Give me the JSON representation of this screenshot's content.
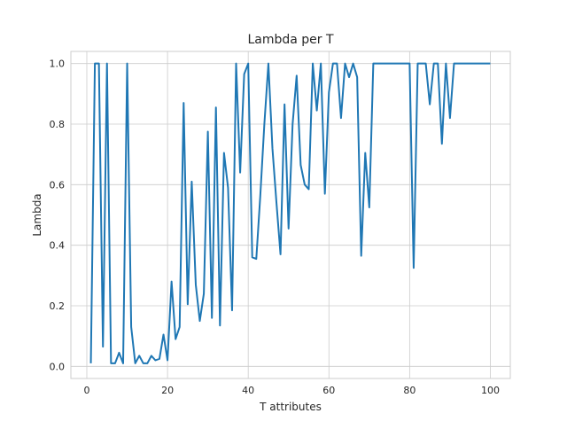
{
  "chart_data": {
    "type": "line",
    "title": "Lambda per T",
    "xlabel": "T attributes",
    "ylabel": "Lambda",
    "xlim": [
      -3.95,
      104.95
    ],
    "ylim": [
      -0.04,
      1.04
    ],
    "xticks": [
      0,
      20,
      40,
      60,
      80,
      100
    ],
    "yticks": [
      0.0,
      0.2,
      0.4,
      0.6,
      0.8,
      1.0
    ],
    "xtick_labels": [
      "0",
      "20",
      "40",
      "60",
      "80",
      "100"
    ],
    "ytick_labels": [
      "0.0",
      "0.2",
      "0.4",
      "0.6",
      "0.8",
      "1.0"
    ],
    "grid": true,
    "line_color": "#1f77b4",
    "series": [
      {
        "x": [
          1,
          2,
          3,
          4,
          5,
          6,
          7,
          8,
          9,
          10,
          11,
          12,
          13,
          14,
          15,
          16,
          17,
          18,
          19,
          20,
          21,
          22,
          23,
          24,
          25,
          26,
          27,
          28,
          29,
          30,
          31,
          32,
          33,
          34,
          35,
          36,
          37,
          38,
          39,
          40,
          41,
          42,
          43,
          44,
          45,
          46,
          47,
          48,
          49,
          50,
          51,
          52,
          53,
          54,
          55,
          56,
          57,
          58,
          59,
          60,
          61,
          62,
          63,
          64,
          65,
          66,
          67,
          68,
          69,
          70,
          71,
          72,
          73,
          74,
          75,
          76,
          77,
          78,
          79,
          80,
          81,
          82,
          83,
          84,
          85,
          86,
          87,
          88,
          89,
          90,
          91,
          92,
          93,
          94,
          95,
          96,
          97,
          98,
          99,
          100
        ],
        "values": [
          0.01,
          1.0,
          1.0,
          0.065,
          1.0,
          0.01,
          0.01,
          0.045,
          0.01,
          1.0,
          0.13,
          0.01,
          0.035,
          0.01,
          0.01,
          0.035,
          0.02,
          0.025,
          0.105,
          0.02,
          0.28,
          0.09,
          0.13,
          0.87,
          0.205,
          0.61,
          0.27,
          0.15,
          0.24,
          0.775,
          0.16,
          0.855,
          0.135,
          0.705,
          0.59,
          0.185,
          1.0,
          0.64,
          0.965,
          1.0,
          0.36,
          0.355,
          0.565,
          0.8,
          1.0,
          0.72,
          0.54,
          0.37,
          0.865,
          0.455,
          0.8,
          0.96,
          0.665,
          0.6,
          0.585,
          1.0,
          0.845,
          1.0,
          0.57,
          0.905,
          1.0,
          1.0,
          0.82,
          1.0,
          0.955,
          1.0,
          0.955,
          0.365,
          0.705,
          0.525,
          1.0,
          1.0,
          1.0,
          1.0,
          1.0,
          1.0,
          1.0,
          1.0,
          1.0,
          1.0,
          0.325,
          1.0,
          1.0,
          1.0,
          0.865,
          1.0,
          1.0,
          0.735,
          1.0,
          0.82,
          1.0,
          1.0,
          1.0,
          1.0,
          1.0,
          1.0,
          1.0,
          1.0,
          1.0,
          1.0
        ]
      }
    ]
  }
}
